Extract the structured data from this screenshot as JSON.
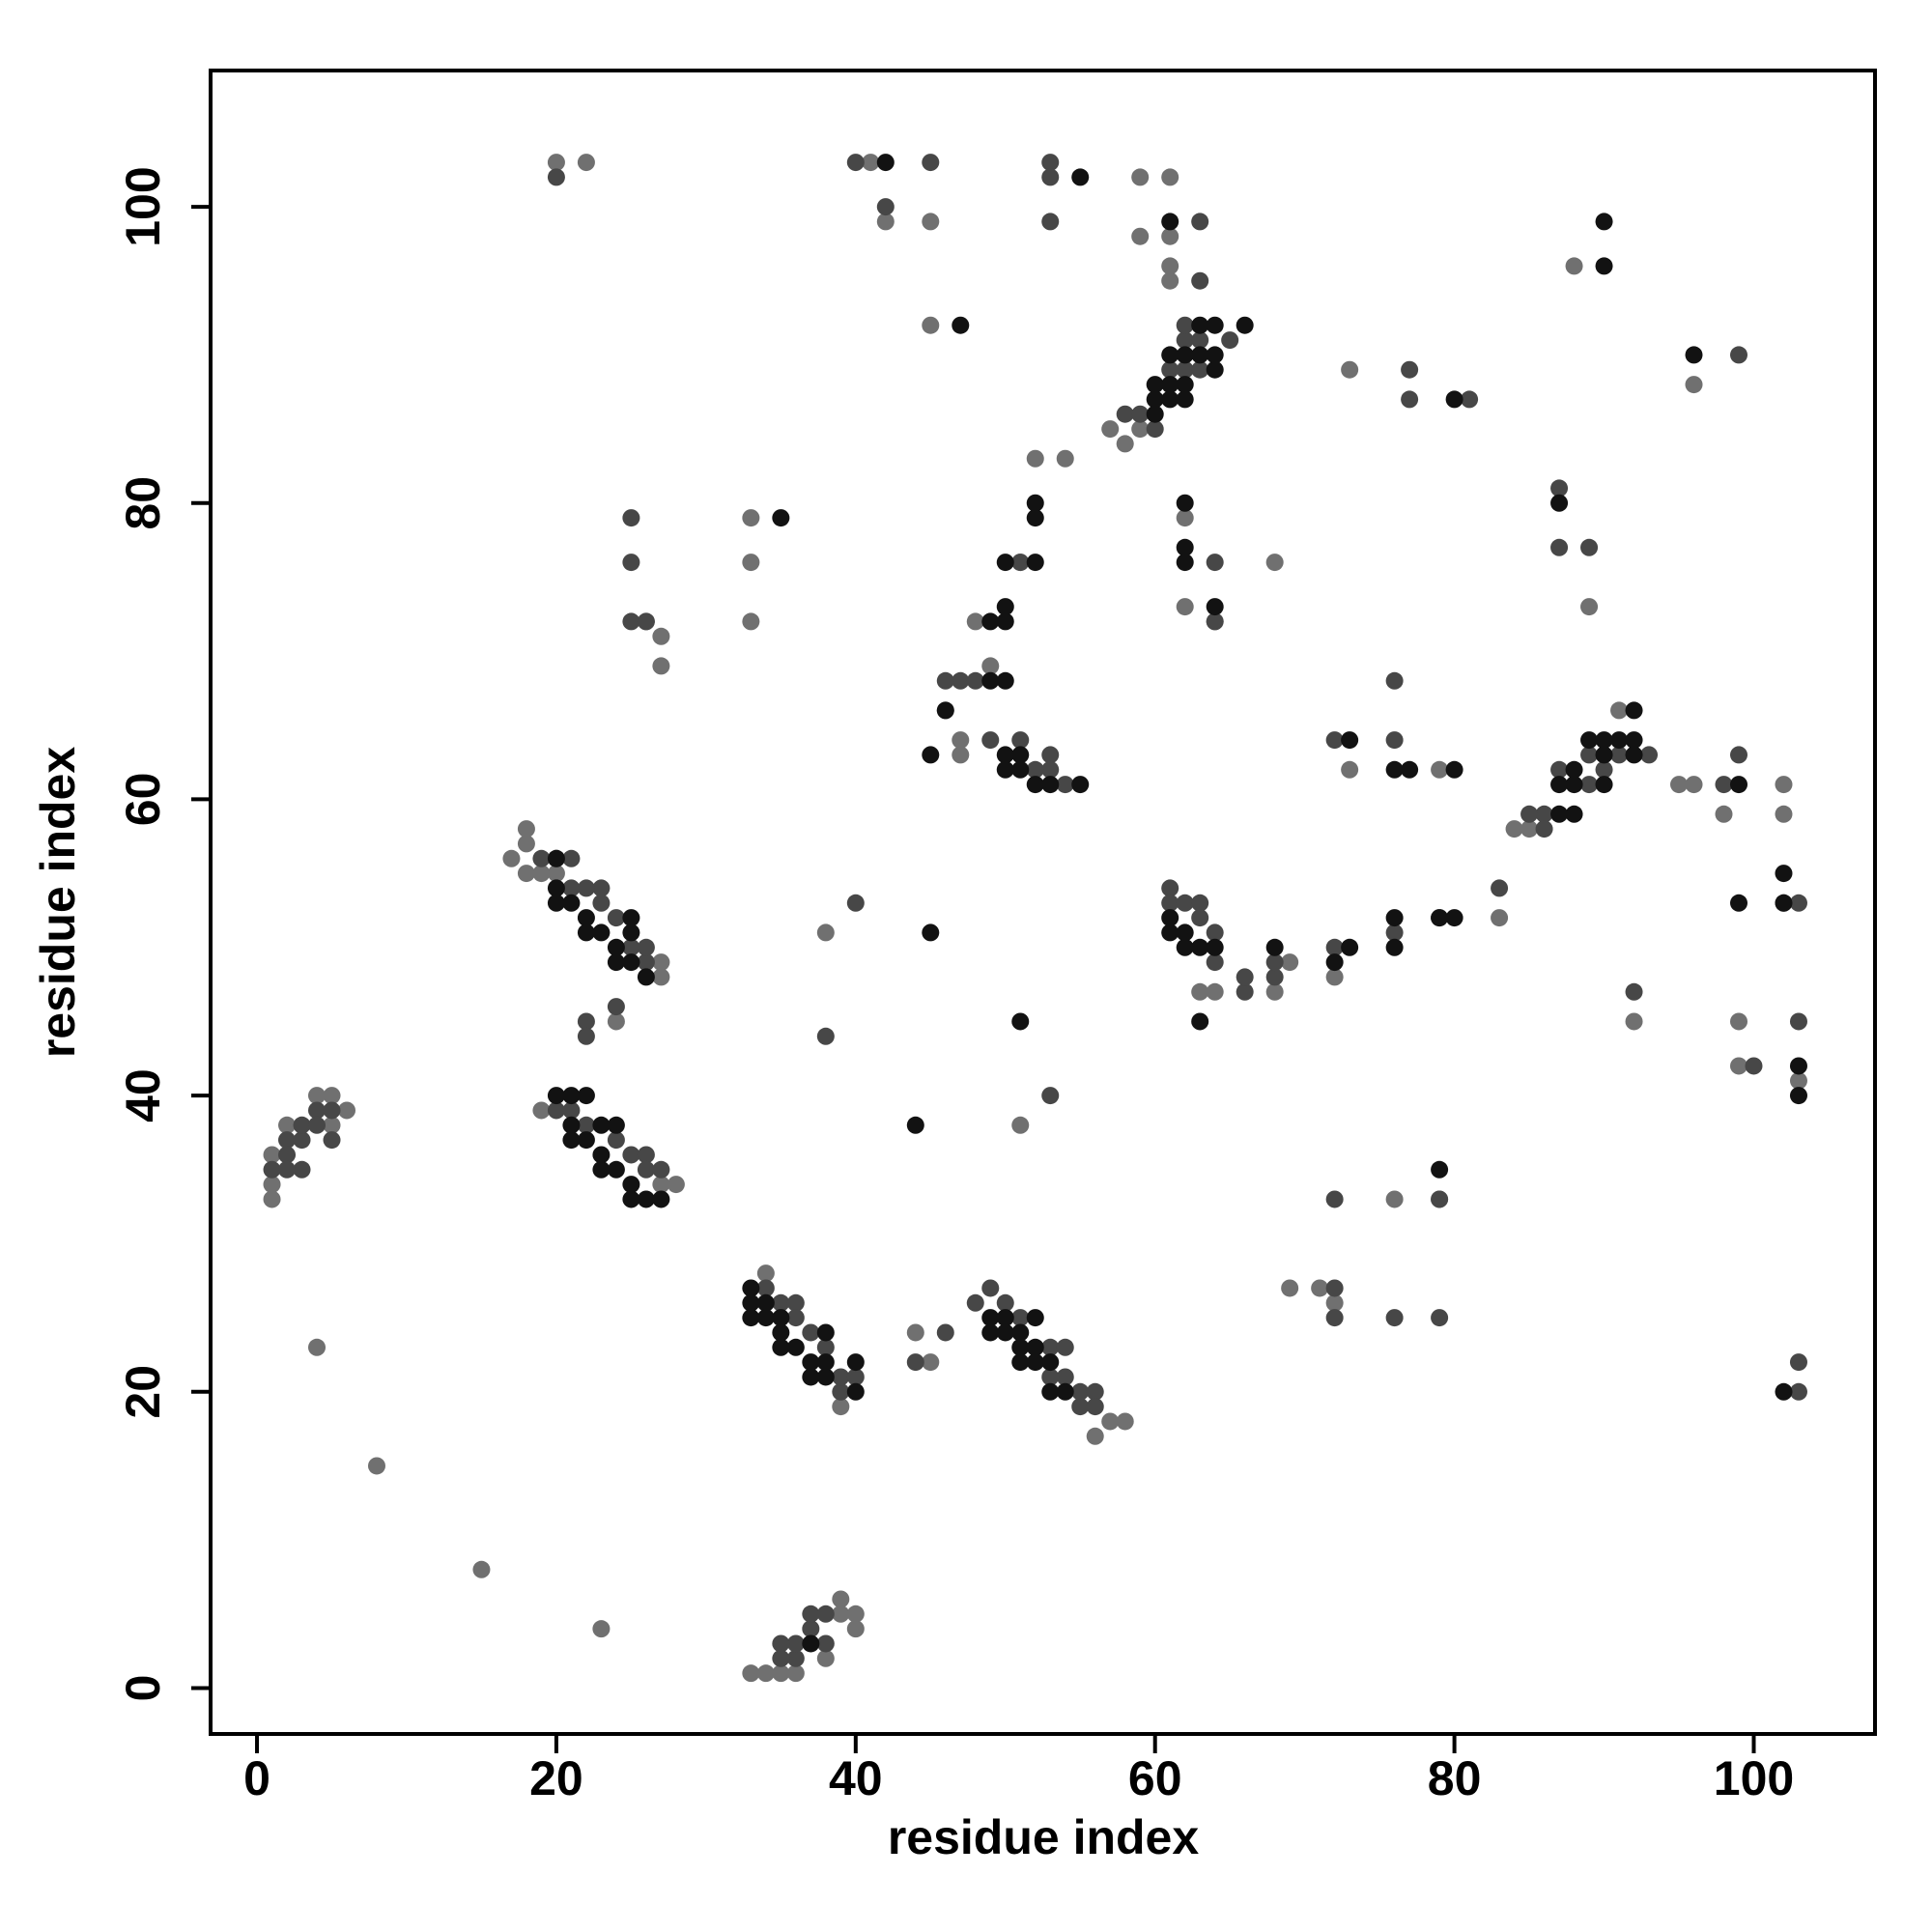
{
  "chart_data": {
    "type": "scatter",
    "xlabel": "residue index",
    "ylabel": "residue index",
    "xlim": [
      -3.1,
      108.1
    ],
    "ylim": [
      -3.1,
      109.2
    ],
    "xticks": [
      0,
      20,
      40,
      60,
      80,
      100
    ],
    "yticks": [
      0,
      20,
      40,
      60,
      80,
      100
    ],
    "series": [
      {
        "color": "#707070",
        "x": [
          20,
          22,
          41,
          45,
          42,
          45,
          59,
          61,
          59,
          61,
          61,
          61,
          88,
          73,
          96,
          33,
          33,
          33,
          27,
          27,
          26,
          47,
          47,
          46,
          49,
          48,
          51,
          52,
          54,
          58,
          57,
          59,
          62,
          62,
          64,
          68,
          89,
          18,
          18,
          17,
          18,
          19,
          20,
          27,
          27,
          24,
          38,
          63,
          64,
          68,
          69,
          72,
          73,
          79,
          83,
          84,
          85,
          95,
          96,
          98,
          102,
          102,
          92,
          99,
          99,
          103,
          51,
          19,
          2,
          4,
          5,
          6,
          1,
          1,
          1,
          5,
          4,
          8,
          15,
          23,
          33,
          34,
          35,
          36,
          34,
          39,
          39,
          38,
          39,
          40,
          40,
          69,
          71,
          72,
          56,
          57,
          58,
          27,
          28,
          76,
          79,
          91,
          44,
          45
        ],
        "values": [
          103,
          103,
          103,
          99,
          99,
          92,
          102,
          102,
          98,
          98,
          96,
          95,
          96,
          89,
          88,
          79,
          76,
          72,
          71,
          69,
          72,
          63,
          64,
          66,
          69,
          72,
          76,
          83,
          83,
          84,
          85,
          85,
          79,
          73,
          72,
          76,
          73,
          58,
          57,
          56,
          55,
          55,
          55,
          48,
          49,
          45,
          51,
          47,
          47,
          47,
          49,
          48,
          62,
          62,
          52,
          58,
          58,
          61,
          61,
          59,
          61,
          59,
          45,
          45,
          42,
          41,
          38,
          39,
          38,
          40,
          40,
          39,
          36,
          34,
          33,
          38,
          23,
          15,
          8,
          4,
          1,
          1,
          1,
          1,
          28,
          19,
          6,
          2,
          5,
          4,
          5,
          27,
          27,
          26,
          17,
          18,
          18,
          34,
          34,
          33,
          33,
          66,
          24,
          22
        ]
      },
      {
        "color": "#474747",
        "x": [
          20,
          40,
          42,
          45,
          53,
          53,
          53,
          63,
          63,
          62,
          63,
          62,
          63,
          65,
          62,
          58,
          59,
          60,
          61,
          77,
          77,
          81,
          99,
          25,
          25,
          25,
          26,
          64,
          64,
          87,
          87,
          89,
          47,
          46,
          48,
          49,
          51,
          51,
          53,
          54,
          53,
          52,
          76,
          72,
          76,
          61,
          61,
          62,
          63,
          63,
          64,
          64,
          66,
          66,
          68,
          68,
          72,
          76,
          79,
          21,
          21,
          19,
          20,
          23,
          22,
          24,
          25,
          26,
          26,
          22,
          22,
          24,
          23,
          40,
          38,
          53,
          72,
          72,
          72,
          76,
          79,
          79,
          20,
          21,
          22,
          24,
          25,
          26,
          26,
          27,
          2,
          2,
          3,
          3,
          3,
          4,
          4,
          5,
          5,
          1,
          2,
          35,
          36,
          36,
          37,
          38,
          34,
          39,
          39,
          40,
          37,
          36,
          36,
          38,
          37,
          38,
          35,
          35,
          44,
          46,
          48,
          49,
          50,
          51,
          53,
          54,
          54,
          55,
          55,
          56,
          56,
          53,
          87,
          86,
          85,
          86,
          89,
          89,
          90,
          91,
          93,
          98,
          99,
          100,
          102,
          103,
          103,
          103,
          92,
          103,
          83
        ],
        "values": [
          102,
          103,
          100,
          103,
          103,
          102,
          99,
          99,
          95,
          91,
          91,
          89,
          89,
          91,
          92,
          86,
          86,
          85,
          89,
          89,
          87,
          87,
          90,
          79,
          76,
          72,
          72,
          76,
          72,
          81,
          77,
          77,
          68,
          68,
          68,
          64,
          64,
          76,
          63,
          61,
          62,
          62,
          68,
          64,
          64,
          54,
          53,
          53,
          53,
          52,
          51,
          49,
          47,
          48,
          48,
          49,
          50,
          51,
          52,
          54,
          56,
          56,
          56,
          54,
          54,
          52,
          50,
          49,
          50,
          45,
          44,
          46,
          53,
          53,
          44,
          40,
          33,
          27,
          25,
          25,
          25,
          33,
          39,
          39,
          38,
          37,
          36,
          36,
          35,
          35,
          37,
          36,
          37,
          38,
          35,
          39,
          38,
          37,
          39,
          35,
          35,
          26,
          26,
          25,
          24,
          23,
          27,
          20,
          21,
          21,
          4,
          2,
          3,
          3,
          5,
          5,
          3,
          2,
          22,
          24,
          26,
          27,
          26,
          25,
          23,
          23,
          21,
          19,
          20,
          20,
          19,
          21,
          62,
          59,
          59,
          58,
          63,
          61,
          62,
          63,
          63,
          61,
          63,
          42,
          53,
          53,
          45,
          22,
          47,
          20,
          54
        ]
      },
      {
        "color": "#121212",
        "x": [
          42,
          55,
          61,
          90,
          90,
          47,
          63,
          64,
          66,
          63,
          64,
          64,
          61,
          62,
          61,
          62,
          61,
          62,
          60,
          60,
          60,
          80,
          96,
          35,
          52,
          52,
          50,
          52,
          62,
          62,
          62,
          64,
          87,
          50,
          50,
          49,
          49,
          50,
          46,
          45,
          50,
          50,
          51,
          51,
          52,
          53,
          55,
          80,
          77,
          76,
          73,
          87,
          88,
          88,
          88,
          87,
          89,
          90,
          90,
          90,
          91,
          92,
          92,
          92,
          99,
          102,
          102,
          99,
          103,
          103,
          102,
          61,
          61,
          62,
          62,
          63,
          64,
          63,
          68,
          72,
          73,
          76,
          76,
          79,
          80,
          20,
          20,
          20,
          21,
          22,
          22,
          23,
          24,
          24,
          25,
          25,
          25,
          26,
          51,
          45,
          44,
          20,
          21,
          22,
          21,
          21,
          22,
          23,
          23,
          23,
          24,
          25,
          25,
          26,
          27,
          24,
          79,
          33,
          33,
          33,
          34,
          34,
          35,
          35,
          35,
          36,
          37,
          37,
          38,
          38,
          38,
          40,
          40,
          49,
          49,
          50,
          50,
          51,
          52,
          51,
          52,
          51,
          52,
          53,
          53,
          54,
          37
        ],
        "values": [
          103,
          102,
          99,
          99,
          96,
          92,
          92,
          92,
          92,
          90,
          90,
          89,
          90,
          90,
          88,
          88,
          87,
          87,
          88,
          87,
          86,
          87,
          90,
          79,
          80,
          79,
          76,
          76,
          80,
          77,
          76,
          73,
          80,
          73,
          72,
          72,
          68,
          68,
          66,
          63,
          63,
          62,
          63,
          62,
          61,
          61,
          61,
          62,
          62,
          62,
          64,
          61,
          62,
          61,
          59,
          59,
          64,
          64,
          61,
          63,
          64,
          64,
          66,
          63,
          61,
          55,
          53,
          53,
          42,
          40,
          20,
          52,
          51,
          51,
          50,
          50,
          50,
          45,
          50,
          49,
          50,
          52,
          50,
          52,
          52,
          56,
          54,
          53,
          53,
          52,
          51,
          51,
          50,
          49,
          49,
          51,
          52,
          48,
          45,
          51,
          38,
          40,
          40,
          40,
          38,
          37,
          37,
          38,
          36,
          35,
          35,
          34,
          33,
          33,
          33,
          38,
          35,
          27,
          26,
          25,
          26,
          25,
          25,
          24,
          23,
          23,
          22,
          21,
          22,
          24,
          21,
          22,
          20,
          25,
          24,
          25,
          24,
          24,
          25,
          23,
          23,
          22,
          22,
          22,
          20,
          20,
          3
        ]
      }
    ]
  }
}
